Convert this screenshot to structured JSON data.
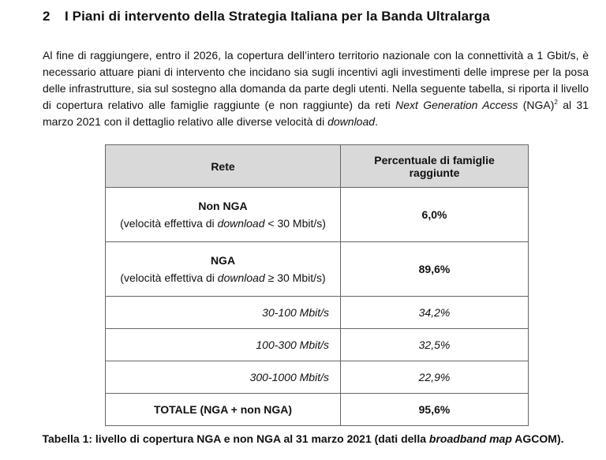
{
  "section": {
    "number": "2",
    "title": "I Piani di intervento della Strategia Italiana per la Banda Ultralarga"
  },
  "paragraph": {
    "part1": "Al fine di raggiungere, entro il 2026, la copertura dell’intero territorio nazionale con la connettività a 1 Gbit/s, è necessario attuare piani di intervento che incidano sia sugli incentivi agli investimenti delle imprese per la posa delle infrastrutture, sia sul sostegno alla domanda da parte degli utenti. Nella seguente tabella, si riporta il livello di copertura relativo alle famiglie raggiunte (e non raggiunte) da reti ",
    "italic_term": "Next Generation Access",
    "part2": " (NGA)",
    "footnote": "2",
    "part3": " al 31 marzo 2021 con il dettaglio relativo alle diverse velocità di ",
    "italic_word": "download",
    "part4": "."
  },
  "table": {
    "headers": [
      "Rete",
      "Percentuale di famiglie raggiunte"
    ],
    "rows": [
      {
        "label": "Non NGA",
        "sub_pre": "(velocità effettiva di ",
        "sub_italic": "download",
        "sub_post": " < 30 Mbit/s)",
        "value": "6,0%"
      },
      {
        "label": "NGA",
        "sub_pre": "(velocità effettiva di ",
        "sub_italic": "download",
        "sub_post": " ≥ 30 Mbit/s)",
        "value": "89,6%"
      },
      {
        "label": "30-100 Mbit/s",
        "value": "34,2%"
      },
      {
        "label": "100-300 Mbit/s",
        "value": "32,5%"
      },
      {
        "label": "300-1000 Mbit/s",
        "value": "22,9%"
      },
      {
        "label": "TOTALE (NGA + non NGA)",
        "value": "95,6%"
      }
    ]
  },
  "caption": {
    "pre": "Tabella 1: livello di copertura NGA e non NGA al 31 marzo 2021 (dati della ",
    "italic": "broadband map",
    "post": " AGCOM)."
  }
}
